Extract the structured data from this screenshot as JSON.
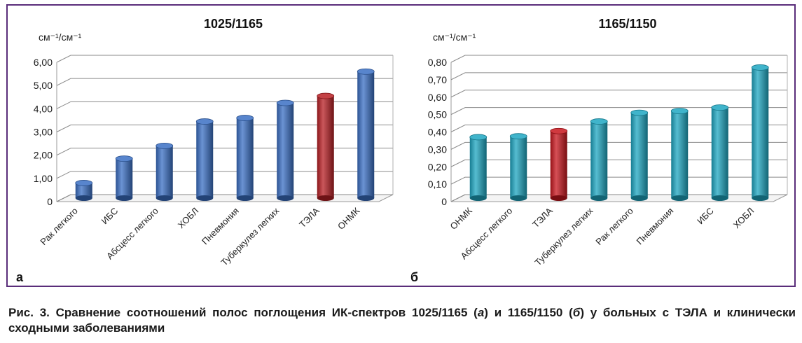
{
  "chart_data": [
    {
      "type": "bar",
      "panel_letter": "а",
      "title": "1025/1165",
      "ylabel": "см⁻¹/см⁻¹",
      "ylim": [
        0,
        6
      ],
      "yticks": [
        "0",
        "1,00",
        "2,00",
        "3,00",
        "4,00",
        "5,00",
        "6,00"
      ],
      "categories": [
        "Рак легкого",
        "ИБС",
        "Абсцесс легкого",
        "ХОБЛ",
        "Пневмония",
        "Туберкулез легких",
        "ТЭЛА",
        "ОНМК"
      ],
      "values": [
        0.65,
        1.7,
        2.25,
        3.3,
        3.45,
        4.1,
        4.4,
        5.45
      ],
      "highlight": "ТЭЛА",
      "bar_color": "#3a6fc4",
      "highlight_color": "#b81f24",
      "grid": true
    },
    {
      "type": "bar",
      "panel_letter": "б",
      "title": "1165/1150",
      "ylabel": "см⁻¹/см⁻¹",
      "ylim": [
        0,
        0.8
      ],
      "yticks": [
        "0",
        "0,10",
        "0,20",
        "0,30",
        "0,40",
        "0,50",
        "0,60",
        "0,70",
        "0,80"
      ],
      "categories": [
        "ОНМК",
        "Абсцесс легкого",
        "ТЭЛА",
        "Туберкулез легких",
        "Рак легкого",
        "Пневмония",
        "ИБС",
        "ХОБЛ"
      ],
      "values": [
        0.35,
        0.355,
        0.385,
        0.44,
        0.49,
        0.5,
        0.52,
        0.75
      ],
      "highlight": "ТЭЛА",
      "bar_color": "#1ea7c2",
      "highlight_color": "#c8161d",
      "grid": true
    }
  ],
  "caption": {
    "part1": "Рис. 3. Сравнение соотношений полос поглощения ИК-спектров 1025/1165 (",
    "a_letter": "а",
    "part2": ") и 1165/1150 (",
    "b_letter": "б",
    "part3": ") у больных с ТЭЛА и клинически сходными заболеваниями"
  }
}
